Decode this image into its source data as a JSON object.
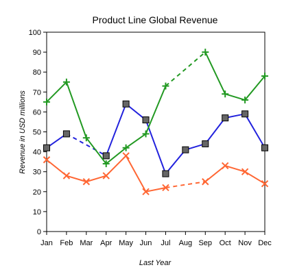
{
  "chart_data": {
    "type": "line",
    "title": "Product Line Global Revenue",
    "xlabel": "Last Year",
    "ylabel": "Revenue in USD millions",
    "categories": [
      "Jan",
      "Feb",
      "Mar",
      "Apr",
      "May",
      "Jun",
      "Jul",
      "Aug",
      "Sep",
      "Oct",
      "Nov",
      "Dec"
    ],
    "ylim": [
      0,
      100
    ],
    "yticks": [
      0,
      10,
      20,
      30,
      40,
      50,
      60,
      70,
      80,
      90,
      100
    ],
    "grid": false,
    "legend": "none",
    "series": [
      {
        "color": "#2222dd",
        "marker": "square",
        "values": [
          42,
          49,
          null,
          38,
          64,
          56,
          29,
          41,
          44,
          57,
          59,
          42
        ],
        "dashed_segments": [
          [
            1,
            3
          ]
        ]
      },
      {
        "color": "#229922",
        "marker": "plus",
        "values": [
          65,
          75,
          47,
          34,
          42,
          49,
          73,
          null,
          90,
          69,
          66,
          78
        ],
        "dashed_segments": [
          [
            6,
            8
          ]
        ]
      },
      {
        "color": "#ff6633",
        "marker": "x",
        "values": [
          36,
          28,
          25,
          28,
          38,
          20,
          22,
          null,
          25,
          33,
          30,
          24
        ],
        "dashed_segments": [
          [
            6,
            8
          ]
        ]
      }
    ]
  }
}
